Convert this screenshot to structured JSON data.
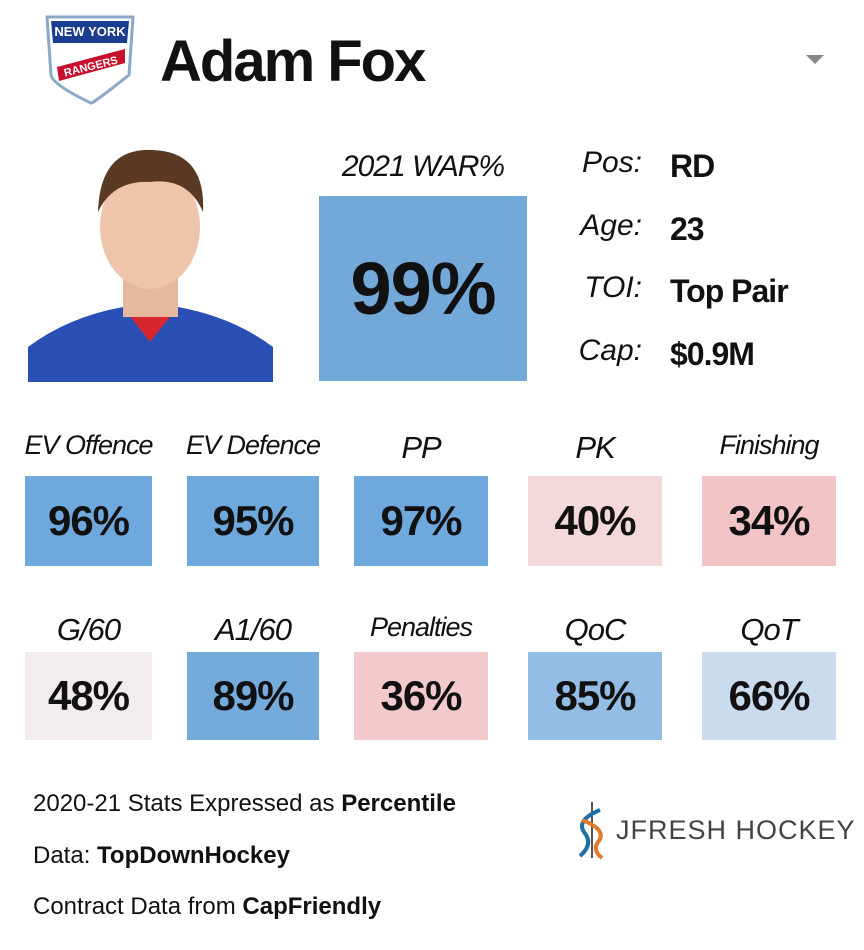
{
  "header": {
    "team_logo": [
      "NEW YORK",
      "RANGERS"
    ],
    "title": "Adam Fox"
  },
  "war": {
    "label": "2021 WAR%",
    "value": "99%",
    "color": "#72a9d9"
  },
  "info": [
    {
      "label": "Pos:",
      "value": "RD"
    },
    {
      "label": "Age:",
      "value": "23"
    },
    {
      "label": "TOI:",
      "value": "Top Pair"
    },
    {
      "label": "Cap:",
      "value": "$0.9M"
    }
  ],
  "stats": [
    [
      {
        "label": "EV Offence",
        "value": "96%",
        "color": "#6fa8dc"
      },
      {
        "label": "EV Defence",
        "value": "95%",
        "color": "#6fa8dc"
      },
      {
        "label": "PP",
        "value": "97%",
        "color": "#6fa8dc"
      },
      {
        "label": "PK",
        "value": "40%",
        "color": "#f4d9da"
      },
      {
        "label": "Finishing",
        "value": "34%",
        "color": "#f2c4c6"
      }
    ],
    [
      {
        "label": "G/60",
        "value": "48%",
        "color": "#f2eced"
      },
      {
        "label": "A1/60",
        "value": "89%",
        "color": "#74abdb"
      },
      {
        "label": "Penalties",
        "value": "36%",
        "color": "#f3cacc"
      },
      {
        "label": "QoC",
        "value": "85%",
        "color": "#93bde4"
      },
      {
        "label": "QoT",
        "value": "66%",
        "color": "#c9dbed"
      }
    ]
  ],
  "footer": [
    [
      {
        "text": "2020-21 Stats Expressed as ",
        "bold": false
      },
      {
        "text": "Percentile",
        "bold": true
      }
    ],
    [
      {
        "text": "Data: ",
        "bold": false
      },
      {
        "text": "TopDownHockey",
        "bold": true
      }
    ],
    [
      {
        "text": "Contract Data from ",
        "bold": false
      },
      {
        "text": "CapFriendly",
        "bold": true
      }
    ]
  ],
  "brand": "JFRESH HOCKEY"
}
